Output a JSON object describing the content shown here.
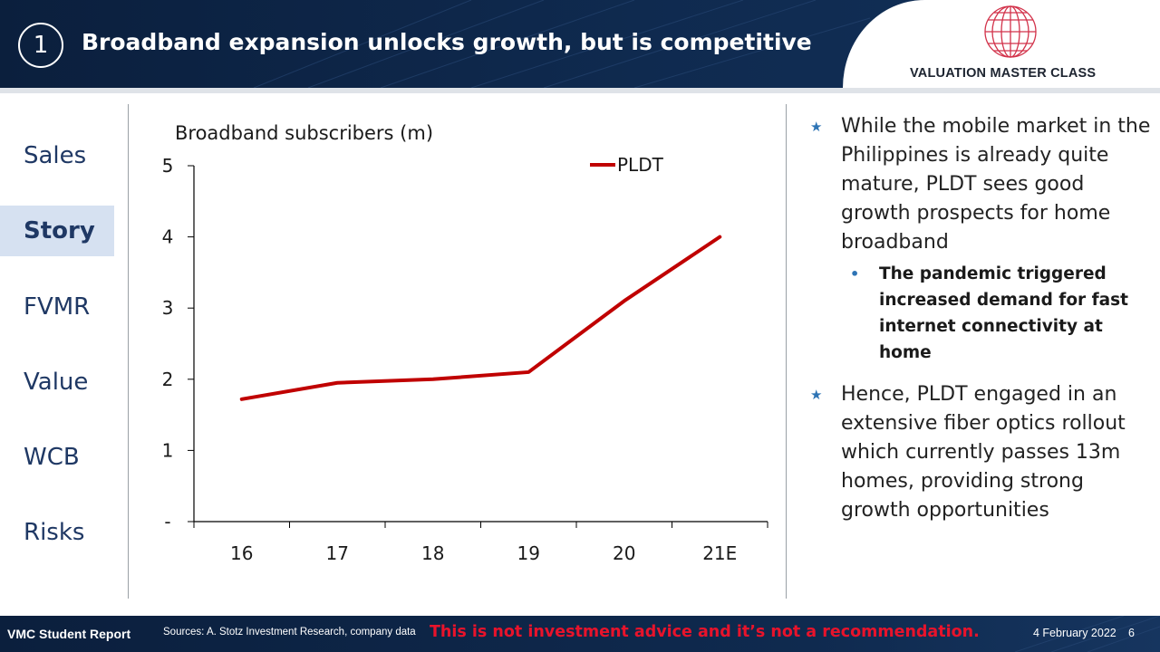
{
  "header": {
    "step_number": "1",
    "title": "Broadband expansion unlocks growth, but is competitive",
    "brand": "VALUATION MASTER CLASS"
  },
  "nav": {
    "items": [
      {
        "label": "Sales",
        "active": false
      },
      {
        "label": "Story",
        "active": true
      },
      {
        "label": "FVMR",
        "active": false
      },
      {
        "label": "Value",
        "active": false
      },
      {
        "label": "WCB",
        "active": false
      },
      {
        "label": "Risks",
        "active": false
      }
    ]
  },
  "chart_data": {
    "type": "line",
    "title": "Broadband subscribers (m)",
    "categories": [
      "16",
      "17",
      "18",
      "19",
      "20",
      "21E"
    ],
    "series": [
      {
        "name": "PLDT",
        "color": "#c00000",
        "values": [
          1.72,
          1.95,
          2.0,
          2.1,
          3.1,
          4.0
        ]
      }
    ],
    "y_tick_labels": [
      "-",
      "1",
      "2",
      "3",
      "4",
      "5"
    ],
    "ylim": [
      0,
      5
    ],
    "grid": false,
    "legend": "top-right"
  },
  "panel": {
    "bullet1": "While the mobile market in the Philippines is already quite mature, PLDT sees good growth prospects for home broadband",
    "sub1": "The pandemic triggered increased demand for fast internet connectivity at home",
    "bullet2": "Hence, PLDT engaged in an extensive fiber optics rollout which currently passes 13m homes, providing strong growth opportunities"
  },
  "footer": {
    "left": "VMC Student Report",
    "sources": "Sources: A. Stotz Investment Research, company data",
    "warning": "This is not investment advice and it’s not a recommendation.",
    "date": "4 February 2022",
    "page": "6"
  },
  "colors": {
    "header_bg": "#0f2a4f",
    "accent_blue": "#2e74b5",
    "series_red": "#c00000",
    "warning_red": "#e8132b",
    "nav_text": "#1f3864",
    "nav_active_bg": "#d6e1f1"
  }
}
